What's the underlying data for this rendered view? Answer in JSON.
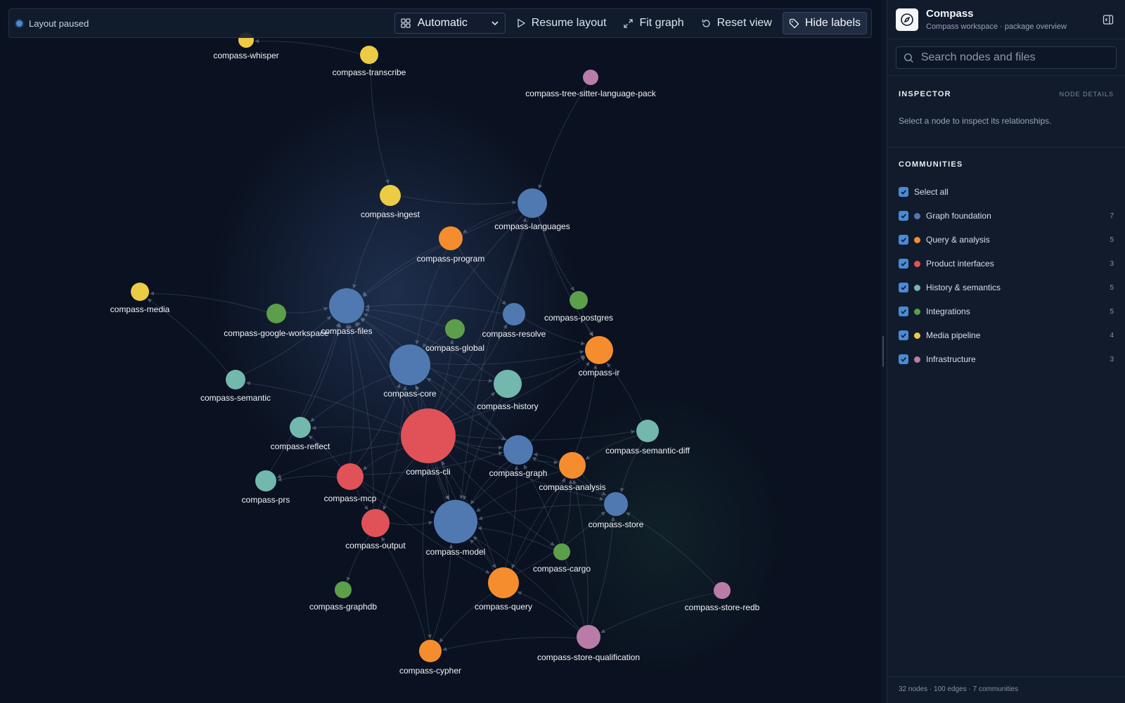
{
  "toolbar": {
    "status": "Layout paused",
    "layout_select": "Automatic",
    "resume": "Resume layout",
    "fit": "Fit graph",
    "reset": "Reset view",
    "hide_labels": "Hide labels"
  },
  "sidebar": {
    "title": "Compass",
    "subtitle": "Compass workspace · package overview",
    "search_placeholder": "Search nodes and files",
    "inspector": {
      "title": "INSPECTOR",
      "meta": "NODE DETAILS",
      "hint": "Select a node to inspect its relationships."
    },
    "communities": {
      "title": "COMMUNITIES",
      "select_all": "Select all",
      "items": [
        {
          "label": "Graph foundation",
          "count": "7",
          "color": "#4f79b0",
          "checked": true
        },
        {
          "label": "Query & analysis",
          "count": "5",
          "color": "#f58d2e",
          "checked": true
        },
        {
          "label": "Product interfaces",
          "count": "3",
          "color": "#e05258",
          "checked": true
        },
        {
          "label": "History & semantics",
          "count": "5",
          "color": "#73b8ad",
          "checked": true
        },
        {
          "label": "Integrations",
          "count": "5",
          "color": "#5c9e4a",
          "checked": true
        },
        {
          "label": "Media pipeline",
          "count": "4",
          "color": "#eccb45",
          "checked": true
        },
        {
          "label": "Infrastructure",
          "count": "3",
          "color": "#b97ca8",
          "checked": true
        }
      ]
    },
    "footer": "32 nodes · 100 edges · 7 communities"
  },
  "graph": {
    "nodes": [
      {
        "id": "compass-whisper",
        "community": "Media pipeline"
      },
      {
        "id": "compass-transcribe",
        "community": "Media pipeline"
      },
      {
        "id": "compass-tree-sitter-language-pack",
        "community": "Infrastructure"
      },
      {
        "id": "compass-ingest",
        "community": "Media pipeline"
      },
      {
        "id": "compass-languages",
        "community": "Graph foundation"
      },
      {
        "id": "compass-program",
        "community": "Query & analysis"
      },
      {
        "id": "compass-media",
        "community": "Media pipeline"
      },
      {
        "id": "compass-google-workspace",
        "community": "Integrations"
      },
      {
        "id": "compass-files",
        "community": "Graph foundation"
      },
      {
        "id": "compass-resolve",
        "community": "Graph foundation"
      },
      {
        "id": "compass-postgres",
        "community": "Integrations"
      },
      {
        "id": "compass-global",
        "community": "Integrations"
      },
      {
        "id": "compass-ir",
        "community": "Query & analysis"
      },
      {
        "id": "compass-semantic",
        "community": "History & semantics"
      },
      {
        "id": "compass-core",
        "community": "Graph foundation"
      },
      {
        "id": "compass-history",
        "community": "History & semantics"
      },
      {
        "id": "compass-reflect",
        "community": "History & semantics"
      },
      {
        "id": "compass-semantic-diff",
        "community": "History & semantics"
      },
      {
        "id": "compass-cli",
        "community": "Product interfaces"
      },
      {
        "id": "compass-graph",
        "community": "Graph foundation"
      },
      {
        "id": "compass-prs",
        "community": "History & semantics"
      },
      {
        "id": "compass-mcp",
        "community": "Product interfaces"
      },
      {
        "id": "compass-analysis",
        "community": "Query & analysis"
      },
      {
        "id": "compass-store",
        "community": "Graph foundation"
      },
      {
        "id": "compass-output",
        "community": "Product interfaces"
      },
      {
        "id": "compass-model",
        "community": "Graph foundation"
      },
      {
        "id": "compass-cargo",
        "community": "Integrations"
      },
      {
        "id": "compass-graphdb",
        "community": "Integrations"
      },
      {
        "id": "compass-query",
        "community": "Query & analysis"
      },
      {
        "id": "compass-store-redb",
        "community": "Infrastructure"
      },
      {
        "id": "compass-store-qualification",
        "community": "Infrastructure"
      },
      {
        "id": "compass-cypher",
        "community": "Query & analysis"
      }
    ]
  }
}
